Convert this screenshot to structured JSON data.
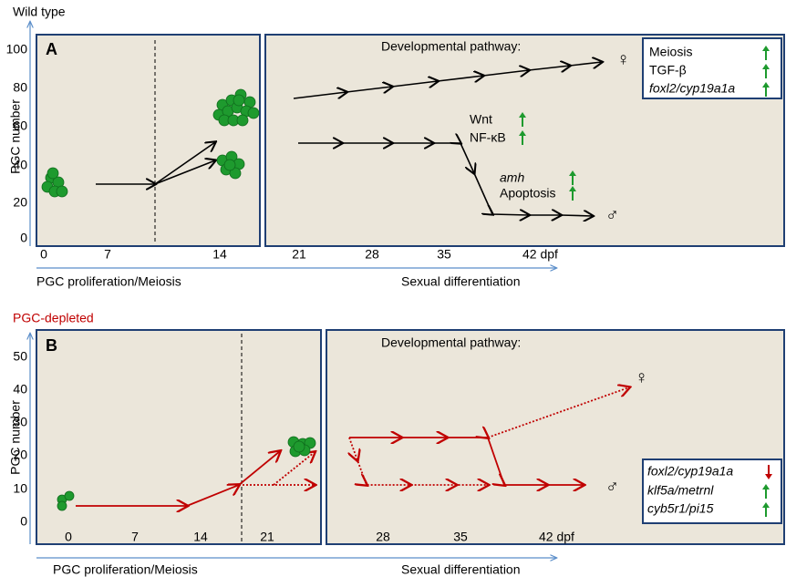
{
  "panels": [
    {
      "condition": "Wild type",
      "label": "A",
      "y_axis_label": "PGC number",
      "y_ticks": [
        "100",
        "80",
        "60",
        "40",
        "20",
        "0"
      ],
      "x_ticks": [
        "0",
        "7",
        "14",
        "21",
        "28",
        "35",
        "42 dpf"
      ],
      "x_axis_labels": [
        "PGC proliferation/Meiosis",
        "Sexual differentiation"
      ],
      "pathway_title": "Developmental pathway:",
      "female_symbol": "♀",
      "male_symbol": "♂",
      "annotations": [
        "Wnt",
        "NF-κB",
        "amh",
        "Apoptosis"
      ],
      "genes": [
        "Meiosis",
        "TGF-β",
        "foxl2/cyp19a1a"
      ]
    },
    {
      "condition": "PGC-depleted",
      "label": "B",
      "y_axis_label": "PGC number",
      "y_ticks": [
        "50",
        "40",
        "30",
        "20",
        "10",
        "0"
      ],
      "x_ticks": [
        "0",
        "7",
        "14",
        "21",
        "28",
        "35",
        "42 dpf"
      ],
      "x_axis_labels": [
        "PGC proliferation/Meiosis",
        "Sexual differentiation"
      ],
      "pathway_title": "Developmental pathway:",
      "female_symbol": "♀",
      "male_symbol": "♂",
      "genes": [
        "foxl2/cyp19a1a",
        "klf5a/metrnl",
        "cyb5r1/pi15"
      ]
    }
  ]
}
